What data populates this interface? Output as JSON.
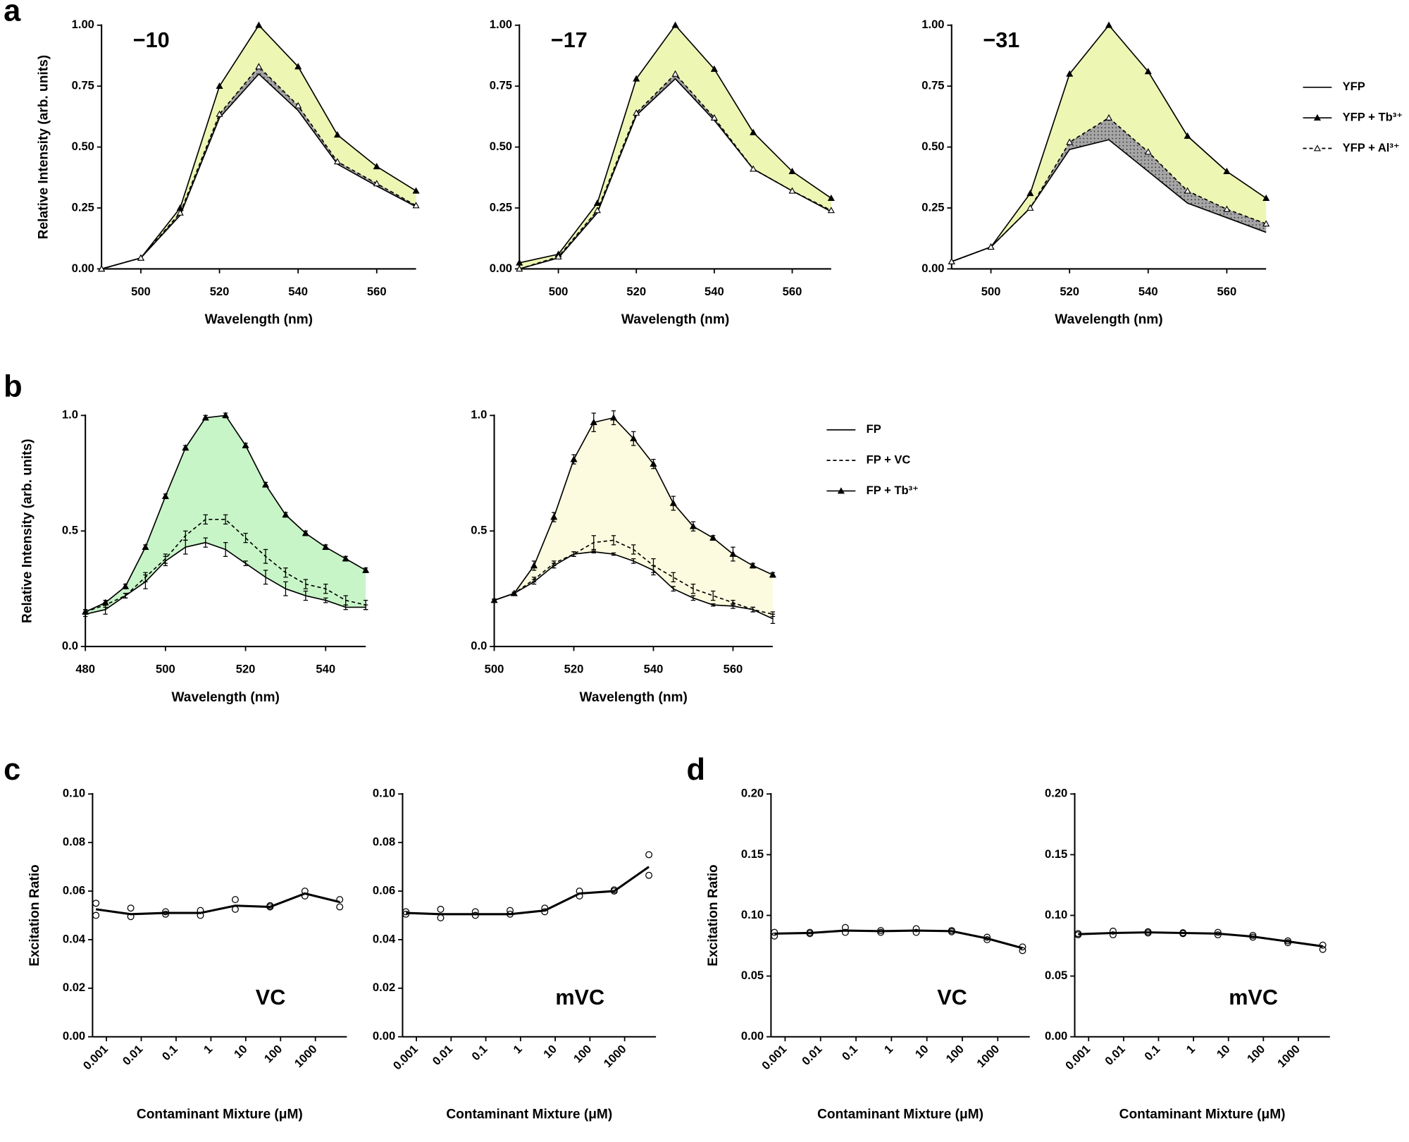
{
  "chart_data": [
    {
      "type": "line",
      "panel": "a",
      "annotation": "−10",
      "x": [
        490,
        500,
        510,
        520,
        530,
        540,
        550,
        560,
        570
      ],
      "xlim": [
        490,
        570
      ],
      "xticks": [
        500,
        520,
        540,
        560
      ],
      "ylim": [
        0,
        1
      ],
      "yticks": [
        {
          "value": 0,
          "label": "0.00"
        },
        {
          "value": 0.25,
          "label": "0.25"
        },
        {
          "value": 0.5,
          "label": "0.50"
        },
        {
          "value": 0.75,
          "label": "0.75"
        },
        {
          "value": 1,
          "label": "1.00"
        }
      ],
      "xlabel": "Wavelength (nm)",
      "ylabel": "Relative Intensity (arb. units)",
      "series": [
        {
          "color": "#000000",
          "values": [
            0.0,
            0.045,
            0.22,
            0.62,
            0.8,
            0.65,
            0.43,
            0.34,
            0.255
          ]
        },
        {
          "color": "#000000",
          "marker": "triangle",
          "fill": "#eef6b4",
          "values": [
            0.0,
            0.045,
            0.25,
            0.75,
            1.0,
            0.83,
            0.55,
            0.42,
            0.32
          ]
        },
        {
          "color": "#000000",
          "dash": true,
          "marker": "triangle-open",
          "fill": "#a6a6a6",
          "pattern": "dots",
          "values": [
            0.0,
            0.045,
            0.23,
            0.635,
            0.83,
            0.67,
            0.44,
            0.35,
            0.26
          ]
        }
      ]
    },
    {
      "type": "line",
      "annotation": "−17",
      "x": [
        490,
        500,
        510,
        520,
        530,
        540,
        550,
        560,
        570
      ],
      "xlim": [
        490,
        570
      ],
      "xticks": [
        500,
        520,
        540,
        560
      ],
      "ylim": [
        0,
        1
      ],
      "yticks": [
        {
          "value": 0,
          "label": "0.00"
        },
        {
          "value": 0.25,
          "label": "0.25"
        },
        {
          "value": 0.5,
          "label": "0.50"
        },
        {
          "value": 0.75,
          "label": "0.75"
        },
        {
          "value": 1,
          "label": "1.00"
        }
      ],
      "xlabel": "Wavelength (nm)",
      "series": [
        {
          "color": "#000000",
          "values": [
            0.0,
            0.045,
            0.23,
            0.63,
            0.78,
            0.61,
            0.41,
            0.32,
            0.235
          ]
        },
        {
          "color": "#000000",
          "marker": "triangle",
          "fill": "#eef6b4",
          "values": [
            0.025,
            0.06,
            0.27,
            0.78,
            1.0,
            0.82,
            0.56,
            0.4,
            0.29
          ]
        },
        {
          "color": "#000000",
          "dash": true,
          "marker": "triangle-open",
          "fill": "#a6a6a6",
          "pattern": "dots",
          "values": [
            0.0,
            0.05,
            0.24,
            0.64,
            0.8,
            0.62,
            0.41,
            0.32,
            0.24
          ]
        }
      ]
    },
    {
      "type": "line",
      "annotation": "−31",
      "legend": "outside-right",
      "x": [
        490,
        500,
        510,
        520,
        530,
        540,
        550,
        560,
        570
      ],
      "xlim": [
        490,
        570
      ],
      "xticks": [
        500,
        520,
        540,
        560
      ],
      "ylim": [
        0,
        1
      ],
      "yticks": [
        {
          "value": 0,
          "label": "0.00"
        },
        {
          "value": 0.25,
          "label": "0.25"
        },
        {
          "value": 0.5,
          "label": "0.50"
        },
        {
          "value": 0.75,
          "label": "0.75"
        },
        {
          "value": 1,
          "label": "1.00"
        }
      ],
      "xlabel": "Wavelength (nm)",
      "series": [
        {
          "name": "YFP",
          "color": "#000000",
          "values": [
            0.03,
            0.09,
            0.25,
            0.49,
            0.53,
            0.4,
            0.27,
            0.21,
            0.15
          ]
        },
        {
          "name": "YFP + Tb³⁺",
          "color": "#000000",
          "marker": "triangle",
          "fill": "#eef6b4",
          "values": [
            0.03,
            0.09,
            0.31,
            0.8,
            1.0,
            0.81,
            0.545,
            0.4,
            0.29
          ]
        },
        {
          "name": "YFP + Al³⁺",
          "color": "#000000",
          "dash": true,
          "marker": "triangle-open",
          "fill": "#a6a6a6",
          "pattern": "dots",
          "values": [
            0.03,
            0.09,
            0.25,
            0.52,
            0.62,
            0.48,
            0.32,
            0.245,
            0.185
          ]
        }
      ]
    },
    {
      "type": "line",
      "panel": "b",
      "x": [
        480,
        485,
        490,
        495,
        500,
        505,
        510,
        515,
        520,
        525,
        530,
        535,
        540,
        545,
        550
      ],
      "xlim": [
        480,
        550
      ],
      "xticks": [
        480,
        500,
        520,
        540
      ],
      "ylim": [
        0,
        1
      ],
      "yticks": [
        {
          "value": 0,
          "label": "0.0"
        },
        {
          "value": 0.5,
          "label": "0.5"
        },
        {
          "value": 1,
          "label": "1.0"
        }
      ],
      "xlabel": "Wavelength (nm)",
      "ylabel": "Relative Intensity (arb. units)",
      "series": [
        {
          "color": "#000000",
          "values": [
            0.14,
            0.16,
            0.22,
            0.28,
            0.37,
            0.43,
            0.45,
            0.42,
            0.36,
            0.3,
            0.25,
            0.22,
            0.2,
            0.17,
            0.17
          ],
          "errors": [
            0.01,
            0.02,
            0.01,
            0.03,
            0.02,
            0.03,
            0.02,
            0.03,
            0.01,
            0.03,
            0.03,
            0.02,
            0.01,
            0.01,
            0.01
          ]
        },
        {
          "color": "#000000",
          "dash": true,
          "fill": "#ffffff",
          "values": [
            0.15,
            0.18,
            0.22,
            0.3,
            0.38,
            0.48,
            0.55,
            0.55,
            0.47,
            0.39,
            0.32,
            0.27,
            0.25,
            0.2,
            0.18
          ],
          "errors": [
            0.01,
            0.01,
            0.01,
            0.02,
            0.02,
            0.02,
            0.02,
            0.02,
            0.02,
            0.03,
            0.02,
            0.02,
            0.02,
            0.02,
            0.02
          ]
        },
        {
          "color": "#000000",
          "marker": "triangle",
          "fill": "#c8f5c8",
          "values": [
            0.15,
            0.19,
            0.26,
            0.43,
            0.65,
            0.86,
            0.99,
            1.0,
            0.87,
            0.7,
            0.57,
            0.49,
            0.43,
            0.38,
            0.33
          ],
          "errors": [
            0.01,
            0.01,
            0.01,
            0.01,
            0.01,
            0.01,
            0.01,
            0.01,
            0.01,
            0.01,
            0.01,
            0.01,
            0.01,
            0.01,
            0.01
          ]
        }
      ]
    },
    {
      "type": "line",
      "legend": "outside-right",
      "x": [
        500,
        505,
        510,
        515,
        520,
        525,
        530,
        535,
        540,
        545,
        550,
        555,
        560,
        565,
        570
      ],
      "xlim": [
        500,
        570
      ],
      "xticks": [
        500,
        520,
        540,
        560
      ],
      "ylim": [
        0,
        1
      ],
      "yticks": [
        {
          "value": 0,
          "label": "0.0"
        },
        {
          "value": 0.5,
          "label": "0.5"
        },
        {
          "value": 1,
          "label": "1.0"
        }
      ],
      "xlabel": "Wavelength (nm)",
      "series": [
        {
          "name": "FP",
          "color": "#000000",
          "values": [
            0.2,
            0.23,
            0.28,
            0.35,
            0.4,
            0.41,
            0.4,
            0.37,
            0.33,
            0.25,
            0.21,
            0.18,
            0.175,
            0.16,
            0.12
          ],
          "errors": [
            0.005,
            0.005,
            0.01,
            0.01,
            0.01,
            0.005,
            0.005,
            0.01,
            0.02,
            0.01,
            0.01,
            0.005,
            0.01,
            0.01,
            0.02
          ]
        },
        {
          "name": "FP + VC",
          "color": "#000000",
          "dash": true,
          "fill": "#ffffff",
          "values": [
            0.2,
            0.23,
            0.29,
            0.36,
            0.4,
            0.45,
            0.46,
            0.42,
            0.35,
            0.3,
            0.25,
            0.22,
            0.19,
            0.16,
            0.14
          ],
          "errors": [
            0.005,
            0.005,
            0.01,
            0.01,
            0.01,
            0.03,
            0.02,
            0.02,
            0.03,
            0.02,
            0.02,
            0.02,
            0.01,
            0.01,
            0.01
          ]
        },
        {
          "name": "FP + Tb³⁺",
          "color": "#000000",
          "marker": "triangle",
          "fill": "#fdfbdf",
          "values": [
            0.2,
            0.23,
            0.35,
            0.56,
            0.81,
            0.97,
            0.99,
            0.9,
            0.79,
            0.62,
            0.52,
            0.47,
            0.4,
            0.35,
            0.31
          ],
          "errors": [
            0.005,
            0.005,
            0.02,
            0.02,
            0.02,
            0.04,
            0.03,
            0.03,
            0.02,
            0.03,
            0.02,
            0.01,
            0.03,
            0.01,
            0.01
          ]
        }
      ]
    },
    {
      "type": "line",
      "panel": "c",
      "annotation": "VC",
      "xscale": "log",
      "x": [
        0.0005,
        0.005,
        0.05,
        0.5,
        5,
        50,
        500,
        5000
      ],
      "xlim": [
        0.0004,
        8000
      ],
      "xticks": [
        0.001,
        0.01,
        0.1,
        1,
        10,
        100,
        1000
      ],
      "ylim": [
        0,
        0.1
      ],
      "yticks": [
        {
          "value": 0,
          "label": "0.00"
        },
        {
          "value": 0.02,
          "label": "0.02"
        },
        {
          "value": 0.04,
          "label": "0.04"
        },
        {
          "value": 0.06,
          "label": "0.06"
        },
        {
          "value": 0.08,
          "label": "0.08"
        },
        {
          "value": 0.1,
          "label": "0.10"
        }
      ],
      "xlabel": "Contaminant Mixture (μM)",
      "ylabel": "Excitation Ratio",
      "series": [
        {
          "color": "#000000",
          "values": [
            0.0525,
            0.0505,
            0.051,
            0.051,
            0.054,
            0.0535,
            0.059,
            0.0555
          ]
        },
        {
          "color": "#000000",
          "line": false,
          "marker": "circle-open",
          "values": [
            0.055,
            0.053,
            0.0515,
            0.052,
            0.0565,
            0.054,
            0.06,
            0.0565
          ]
        },
        {
          "color": "#000000",
          "line": false,
          "marker": "circle-open",
          "values": [
            0.05,
            0.0495,
            0.0505,
            0.05,
            0.0525,
            0.0535,
            0.058,
            0.0535
          ]
        }
      ]
    },
    {
      "type": "line",
      "annotation": "mVC",
      "xscale": "log",
      "x": [
        0.0005,
        0.005,
        0.05,
        0.5,
        5,
        50,
        500,
        5000
      ],
      "xlim": [
        0.0004,
        8000
      ],
      "xticks": [
        0.001,
        0.01,
        0.1,
        1,
        10,
        100,
        1000
      ],
      "ylim": [
        0,
        0.1
      ],
      "yticks": [
        {
          "value": 0,
          "label": "0.00"
        },
        {
          "value": 0.02,
          "label": "0.02"
        },
        {
          "value": 0.04,
          "label": "0.04"
        },
        {
          "value": 0.06,
          "label": "0.06"
        },
        {
          "value": 0.08,
          "label": "0.08"
        },
        {
          "value": 0.1,
          "label": "0.10"
        }
      ],
      "xlabel": "Contaminant Mixture (μM)",
      "series": [
        {
          "color": "#000000",
          "values": [
            0.051,
            0.0505,
            0.0505,
            0.0505,
            0.052,
            0.059,
            0.06,
            0.07
          ]
        },
        {
          "color": "#000000",
          "line": false,
          "marker": "circle-open",
          "values": [
            0.0515,
            0.0525,
            0.0515,
            0.052,
            0.053,
            0.06,
            0.0605,
            0.075
          ]
        },
        {
          "color": "#000000",
          "line": false,
          "marker": "circle-open",
          "values": [
            0.0505,
            0.049,
            0.05,
            0.0505,
            0.0515,
            0.058,
            0.06,
            0.0665
          ]
        }
      ]
    },
    {
      "type": "line",
      "panel": "d",
      "annotation": "VC",
      "xscale": "log",
      "x": [
        0.0005,
        0.005,
        0.05,
        0.5,
        5,
        50,
        500,
        5000
      ],
      "xlim": [
        0.0004,
        8000
      ],
      "xticks": [
        0.001,
        0.01,
        0.1,
        1,
        10,
        100,
        1000
      ],
      "ylim": [
        0,
        0.2
      ],
      "yticks": [
        {
          "value": 0,
          "label": "0.00"
        },
        {
          "value": 0.05,
          "label": "0.05"
        },
        {
          "value": 0.1,
          "label": "0.10"
        },
        {
          "value": 0.15,
          "label": "0.15"
        },
        {
          "value": 0.2,
          "label": "0.20"
        }
      ],
      "xlabel": "Contaminant Mixture (μM)",
      "ylabel": "Excitation Ratio",
      "series": [
        {
          "color": "#000000",
          "values": [
            0.085,
            0.0855,
            0.0875,
            0.087,
            0.0875,
            0.087,
            0.081,
            0.073
          ]
        },
        {
          "color": "#000000",
          "line": false,
          "marker": "circle-open",
          "values": [
            0.086,
            0.086,
            0.09,
            0.0875,
            0.089,
            0.0875,
            0.082,
            0.074
          ]
        },
        {
          "color": "#000000",
          "line": false,
          "marker": "circle-open",
          "values": [
            0.083,
            0.085,
            0.086,
            0.086,
            0.086,
            0.0865,
            0.08,
            0.071
          ]
        }
      ]
    },
    {
      "type": "line",
      "annotation": "mVC",
      "xscale": "log",
      "x": [
        0.0005,
        0.005,
        0.05,
        0.5,
        5,
        50,
        500,
        5000
      ],
      "xlim": [
        0.0004,
        8000
      ],
      "xticks": [
        0.001,
        0.01,
        0.1,
        1,
        10,
        100,
        1000
      ],
      "ylim": [
        0,
        0.2
      ],
      "yticks": [
        {
          "value": 0,
          "label": "0.00"
        },
        {
          "value": 0.05,
          "label": "0.05"
        },
        {
          "value": 0.1,
          "label": "0.10"
        },
        {
          "value": 0.15,
          "label": "0.15"
        },
        {
          "value": 0.2,
          "label": "0.20"
        }
      ],
      "xlabel": "Contaminant Mixture (μM)",
      "series": [
        {
          "color": "#000000",
          "values": [
            0.0845,
            0.0855,
            0.086,
            0.0855,
            0.085,
            0.0825,
            0.0785,
            0.0745
          ]
        },
        {
          "color": "#000000",
          "line": false,
          "marker": "circle-open",
          "values": [
            0.085,
            0.087,
            0.0865,
            0.0857,
            0.086,
            0.0835,
            0.079,
            0.0755
          ]
        },
        {
          "color": "#000000",
          "line": false,
          "marker": "circle-open",
          "values": [
            0.084,
            0.084,
            0.0855,
            0.085,
            0.084,
            0.082,
            0.0775,
            0.072
          ]
        }
      ]
    }
  ]
}
